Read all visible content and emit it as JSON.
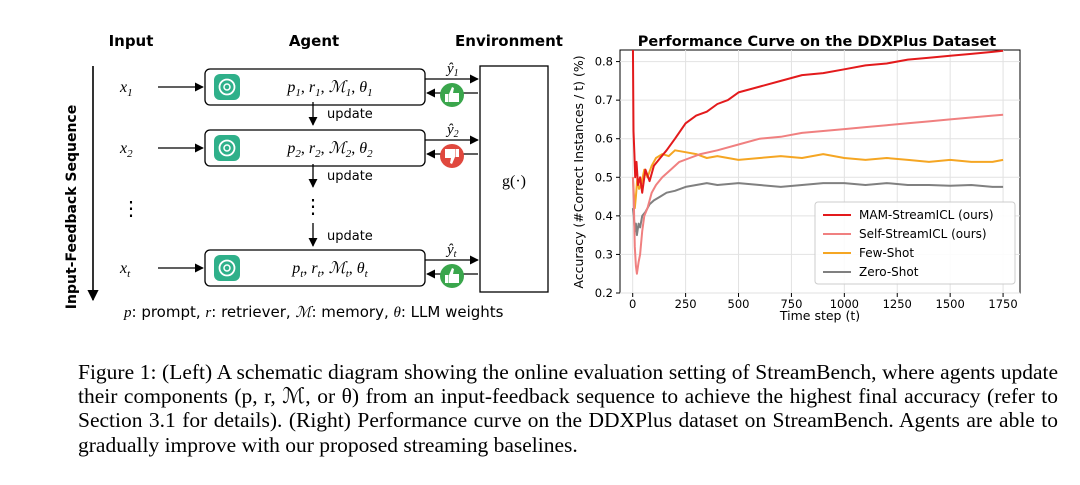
{
  "diagram": {
    "col_input": "Input",
    "col_agent": "Agent",
    "col_environment": "Environment",
    "side_label": "Input-Feedback Sequence",
    "rows": [
      {
        "x": "x",
        "x_sub": "1",
        "y_sub": "1",
        "p": "p",
        "r": "r",
        "m": "ℳ",
        "th": "θ",
        "sub": "1",
        "feedback": "positive"
      },
      {
        "x": "x",
        "x_sub": "2",
        "y_sub": "2",
        "p": "p",
        "r": "r",
        "m": "ℳ",
        "th": "θ",
        "sub": "2",
        "feedback": "negative"
      },
      {
        "x": "x",
        "x_sub": "t",
        "y_sub": "t",
        "p": "p",
        "r": "r",
        "m": "ℳ",
        "th": "θ",
        "sub": "t",
        "feedback": "positive"
      }
    ],
    "update_label": "update",
    "env_function": "g(·)",
    "ellipsis": "⋮",
    "y_hat": "ŷ",
    "legend": {
      "p": "p",
      "p_desc": ": prompt, ",
      "r": "r",
      "r_desc": ": retriever, ",
      "m": "ℳ",
      "m_desc": ": memory, ",
      "th": "θ",
      "th_desc": ": LLM weights"
    },
    "colors": {
      "positive": "#3aa64c",
      "negative": "#e0483e",
      "agent_icon": "#2fb08a"
    },
    "icons": {
      "agent": "openai-logo-icon",
      "positive": "thumbs-up-icon",
      "negative": "thumbs-down-icon"
    }
  },
  "chart_data": {
    "type": "line",
    "title": "Performance Curve on the DDXPlus Dataset",
    "xlabel": "Time step (t)",
    "ylabel": "Accuracy (#Correct Instances / t) (%)",
    "xlim": [
      -60,
      1830
    ],
    "ylim": [
      0.2,
      0.83
    ],
    "xticks": [
      0,
      250,
      500,
      750,
      1000,
      1250,
      1500,
      1750
    ],
    "yticks": [
      0.2,
      0.3,
      0.4,
      0.5,
      0.6,
      0.7,
      0.8
    ],
    "grid": true,
    "legend_position": "lower-right",
    "series": [
      {
        "name": "MAM-StreamICL (ours)",
        "color": "#e31a1c",
        "x": [
          1,
          4,
          8,
          12,
          18,
          25,
          35,
          45,
          60,
          80,
          100,
          130,
          160,
          200,
          250,
          300,
          350,
          400,
          450,
          500,
          600,
          700,
          800,
          900,
          1000,
          1100,
          1200,
          1300,
          1400,
          1500,
          1600,
          1700,
          1750
        ],
        "y": [
          0.85,
          0.62,
          0.56,
          0.5,
          0.54,
          0.48,
          0.5,
          0.46,
          0.52,
          0.49,
          0.53,
          0.55,
          0.57,
          0.6,
          0.64,
          0.66,
          0.67,
          0.69,
          0.7,
          0.72,
          0.735,
          0.75,
          0.765,
          0.77,
          0.78,
          0.79,
          0.795,
          0.805,
          0.81,
          0.815,
          0.82,
          0.825,
          0.828
        ]
      },
      {
        "name": "Self-StreamICL (ours)",
        "color": "#f08080",
        "x": [
          1,
          5,
          10,
          15,
          20,
          28,
          35,
          45,
          55,
          70,
          90,
          110,
          140,
          180,
          220,
          270,
          320,
          400,
          500,
          600,
          700,
          800,
          900,
          1000,
          1100,
          1200,
          1300,
          1400,
          1500,
          1600,
          1700,
          1750
        ],
        "y": [
          0.5,
          0.44,
          0.32,
          0.27,
          0.25,
          0.28,
          0.3,
          0.36,
          0.4,
          0.42,
          0.46,
          0.48,
          0.5,
          0.52,
          0.54,
          0.55,
          0.56,
          0.57,
          0.585,
          0.6,
          0.605,
          0.615,
          0.62,
          0.625,
          0.63,
          0.635,
          0.64,
          0.645,
          0.65,
          0.655,
          0.66,
          0.662
        ]
      },
      {
        "name": "Few-Shot",
        "color": "#f5a623",
        "x": [
          1,
          5,
          10,
          15,
          22,
          30,
          40,
          55,
          70,
          90,
          110,
          140,
          170,
          200,
          250,
          300,
          350,
          400,
          500,
          600,
          700,
          800,
          900,
          1000,
          1100,
          1200,
          1300,
          1400,
          1500,
          1600,
          1700,
          1750
        ],
        "y": [
          0.5,
          0.46,
          0.42,
          0.45,
          0.5,
          0.47,
          0.48,
          0.52,
          0.5,
          0.53,
          0.55,
          0.56,
          0.555,
          0.57,
          0.565,
          0.56,
          0.55,
          0.555,
          0.545,
          0.55,
          0.555,
          0.55,
          0.56,
          0.55,
          0.545,
          0.55,
          0.545,
          0.54,
          0.545,
          0.54,
          0.54,
          0.545
        ]
      },
      {
        "name": "Zero-Shot",
        "color": "#808080",
        "x": [
          1,
          5,
          10,
          15,
          20,
          28,
          35,
          45,
          60,
          80,
          100,
          130,
          160,
          200,
          250,
          300,
          350,
          400,
          500,
          600,
          700,
          800,
          900,
          1000,
          1100,
          1200,
          1300,
          1400,
          1500,
          1600,
          1700,
          1750
        ],
        "y": [
          0.42,
          0.4,
          0.36,
          0.38,
          0.35,
          0.38,
          0.37,
          0.4,
          0.41,
          0.43,
          0.44,
          0.45,
          0.46,
          0.465,
          0.475,
          0.48,
          0.485,
          0.48,
          0.485,
          0.48,
          0.475,
          0.48,
          0.485,
          0.485,
          0.48,
          0.485,
          0.48,
          0.48,
          0.478,
          0.48,
          0.475,
          0.475
        ]
      }
    ]
  },
  "caption": {
    "text": "Figure 1: (Left) A schematic diagram showing the online evaluation setting of StreamBench, where agents update their components (p, r, ℳ, or θ) from an input-feedback sequence to achieve the highest final accuracy (refer to Section 3.1 for details). (Right) Performance curve on the DDXPlus dataset on StreamBench. Agents are able to gradually improve with our proposed streaming baselines."
  }
}
